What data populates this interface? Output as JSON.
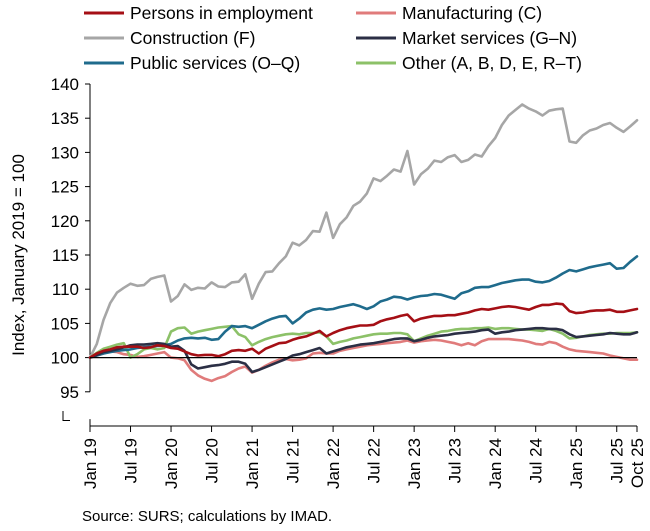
{
  "chart_data": {
    "type": "line",
    "ylabel": "Index, January 2019 = 100",
    "xlabel": "",
    "ylim": [
      90,
      140
    ],
    "y_ticks": [
      95,
      100,
      105,
      110,
      115,
      120,
      125,
      130,
      135,
      140
    ],
    "y_axis_break": true,
    "reference_line": 100,
    "grid": false,
    "legend_position": "top",
    "x_start": "Jan 19",
    "x_tick_labels": [
      {
        "label": "Jan 19",
        "month": 0
      },
      {
        "label": "Jul 19",
        "month": 6
      },
      {
        "label": "Jan 20",
        "month": 12
      },
      {
        "label": "Jul 20",
        "month": 18
      },
      {
        "label": "Jan 21",
        "month": 24
      },
      {
        "label": "Jul 21",
        "month": 30
      },
      {
        "label": "Jan 22",
        "month": 36
      },
      {
        "label": "Jul 22",
        "month": 42
      },
      {
        "label": "Jan 23",
        "month": 48
      },
      {
        "label": "Jul 23",
        "month": 54
      },
      {
        "label": "Jan 24",
        "month": 60
      },
      {
        "label": "Jul 24",
        "month": 66
      },
      {
        "label": "Jan 25",
        "month": 72
      },
      {
        "label": "Jul 25",
        "month": 78
      },
      {
        "label": "Oct 25",
        "month": 81
      }
    ],
    "series": [
      {
        "name": "Persons in employment",
        "color": "#a50f15",
        "values": [
          100.0,
          100.6,
          101.0,
          101.2,
          101.5,
          101.6,
          101.6,
          101.6,
          101.4,
          101.5,
          101.8,
          101.7,
          101.4,
          101.3,
          100.9,
          100.5,
          100.3,
          100.4,
          100.4,
          100.2,
          100.5,
          101.0,
          101.1,
          101.0,
          101.3,
          100.6,
          101.3,
          101.7,
          102.1,
          102.2,
          102.6,
          102.9,
          103.1,
          103.5,
          103.9,
          103.1,
          103.6,
          104.0,
          104.3,
          104.5,
          104.7,
          104.7,
          104.8,
          105.3,
          105.6,
          105.8,
          106.1,
          106.3,
          105.3,
          105.7,
          105.9,
          106.1,
          106.1,
          106.2,
          106.2,
          106.4,
          106.6,
          106.9,
          107.1,
          107.0,
          107.2,
          107.4,
          107.5,
          107.4,
          107.2,
          107.0,
          107.4,
          107.7,
          107.7,
          107.9,
          107.8,
          106.8,
          106.5,
          106.6,
          106.8,
          106.9,
          106.9,
          107.0,
          106.7,
          106.7,
          106.9,
          107.1
        ]
      },
      {
        "name": "Manufacturing (C)",
        "color": "#e07b7b",
        "values": [
          100.0,
          100.3,
          100.6,
          100.9,
          100.8,
          100.5,
          100.4,
          100.1,
          100.2,
          100.4,
          100.6,
          100.8,
          100.0,
          99.9,
          99.6,
          98.2,
          97.4,
          96.9,
          96.6,
          97.0,
          97.3,
          97.9,
          98.4,
          98.7,
          97.8,
          98.2,
          98.8,
          99.3,
          99.7,
          99.8,
          99.6,
          99.7,
          99.9,
          100.6,
          100.7,
          100.6,
          100.6,
          101.0,
          101.2,
          101.4,
          101.6,
          101.8,
          101.9,
          102.0,
          102.1,
          102.2,
          102.3,
          102.5,
          102.2,
          102.4,
          102.5,
          102.6,
          102.5,
          102.3,
          102.1,
          101.8,
          102.1,
          101.8,
          102.4,
          102.7,
          102.7,
          102.7,
          102.7,
          102.6,
          102.5,
          102.3,
          102.0,
          101.9,
          102.3,
          102.1,
          101.6,
          101.2,
          101.0,
          100.9,
          100.8,
          100.7,
          100.6,
          100.3,
          100.1,
          99.9,
          99.7,
          99.7
        ]
      },
      {
        "name": "Construction (F)",
        "color": "#a6a6a6",
        "values": [
          100.0,
          102.0,
          105.5,
          108.0,
          109.5,
          110.2,
          110.8,
          110.5,
          110.6,
          111.5,
          111.8,
          112.0,
          108.2,
          109.0,
          110.7,
          109.9,
          110.2,
          110.1,
          111.0,
          110.4,
          110.3,
          111.0,
          111.1,
          112.2,
          108.6,
          110.8,
          112.5,
          112.6,
          113.8,
          114.8,
          116.8,
          116.4,
          117.2,
          118.5,
          118.4,
          121.2,
          117.5,
          119.5,
          120.5,
          122.2,
          122.8,
          124.0,
          126.2,
          125.8,
          126.6,
          127.5,
          127.2,
          130.2,
          125.3,
          126.8,
          127.6,
          128.8,
          128.6,
          129.3,
          129.6,
          128.6,
          128.9,
          129.7,
          129.4,
          130.9,
          132.1,
          134.0,
          135.4,
          136.2,
          137.0,
          136.4,
          136.0,
          135.4,
          136.1,
          136.3,
          136.4,
          131.6,
          131.4,
          132.5,
          133.2,
          133.5,
          134.0,
          134.3,
          133.6,
          133.0,
          133.8,
          134.7
        ]
      },
      {
        "name": "Market services (G–N)",
        "color": "#2b2f45",
        "values": [
          100.0,
          100.4,
          100.8,
          101.0,
          101.2,
          101.5,
          101.8,
          101.9,
          101.9,
          102.0,
          102.1,
          102.0,
          101.6,
          101.7,
          101.0,
          99.0,
          98.4,
          98.6,
          98.8,
          98.9,
          99.1,
          99.4,
          99.4,
          99.1,
          97.9,
          98.2,
          98.6,
          99.0,
          99.4,
          99.8,
          100.3,
          100.5,
          100.8,
          101.1,
          101.4,
          100.6,
          100.9,
          101.2,
          101.5,
          101.7,
          101.9,
          102.0,
          102.1,
          102.3,
          102.5,
          102.7,
          102.8,
          102.8,
          102.4,
          102.6,
          102.9,
          103.1,
          103.2,
          103.3,
          103.5,
          103.6,
          103.7,
          103.8,
          104.0,
          104.1,
          103.5,
          103.7,
          103.8,
          104.0,
          104.1,
          104.2,
          104.3,
          104.3,
          104.2,
          104.2,
          104.0,
          103.4,
          103.0,
          103.1,
          103.2,
          103.3,
          103.4,
          103.6,
          103.5,
          103.4,
          103.4,
          103.7
        ]
      },
      {
        "name": "Public services (O–Q)",
        "color": "#1f6b8c",
        "values": [
          100.0,
          100.3,
          100.6,
          100.8,
          101.0,
          101.1,
          101.2,
          101.4,
          101.5,
          101.6,
          101.7,
          101.8,
          102.0,
          102.5,
          102.8,
          102.9,
          102.8,
          102.9,
          102.6,
          102.7,
          103.8,
          104.6,
          104.5,
          104.6,
          104.3,
          104.8,
          105.3,
          105.7,
          106.0,
          106.1,
          105.0,
          105.7,
          106.6,
          107.0,
          107.2,
          107.0,
          107.1,
          107.4,
          107.6,
          107.8,
          107.5,
          107.1,
          107.5,
          108.2,
          108.5,
          108.9,
          108.8,
          108.5,
          108.8,
          109.0,
          109.1,
          109.3,
          109.2,
          108.9,
          108.6,
          109.4,
          109.7,
          110.2,
          110.3,
          110.3,
          110.6,
          110.9,
          111.1,
          111.3,
          111.4,
          111.4,
          111.1,
          111.0,
          111.2,
          111.7,
          112.3,
          112.8,
          112.6,
          112.9,
          113.2,
          113.4,
          113.6,
          113.8,
          113.0,
          113.1,
          114.0,
          114.8
        ]
      },
      {
        "name": "Other (A, B, D, E, R–T)",
        "color": "#8cc168",
        "values": [
          100.0,
          100.7,
          101.3,
          101.6,
          101.9,
          102.1,
          100.0,
          100.5,
          101.2,
          101.4,
          101.2,
          101.4,
          103.8,
          104.3,
          104.4,
          103.5,
          103.8,
          104.0,
          104.2,
          104.4,
          104.5,
          104.6,
          103.4,
          103.0,
          101.8,
          102.3,
          102.7,
          103.0,
          103.2,
          103.4,
          103.5,
          103.4,
          103.6,
          103.6,
          103.7,
          103.1,
          102.0,
          102.3,
          102.5,
          102.8,
          103.0,
          103.2,
          103.4,
          103.5,
          103.5,
          103.6,
          103.6,
          103.4,
          102.4,
          102.8,
          103.2,
          103.5,
          103.8,
          103.9,
          104.1,
          104.2,
          104.2,
          104.3,
          104.3,
          104.4,
          104.2,
          104.3,
          104.3,
          104.2,
          104.1,
          104.1,
          104.0,
          103.9,
          104.2,
          103.9,
          103.5,
          102.8,
          102.9,
          103.1,
          103.3,
          103.4,
          103.5,
          103.5,
          103.6,
          103.6,
          103.6,
          103.7
        ]
      }
    ]
  },
  "footer": {
    "source": "Source: SURS; calculations by IMAD."
  }
}
